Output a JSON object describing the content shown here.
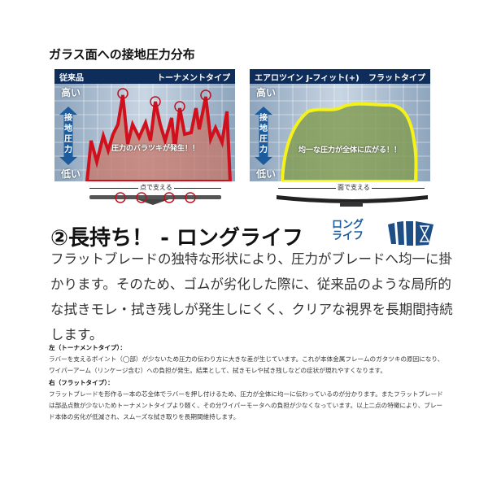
{
  "title": "ガラス面への接地圧力分布",
  "left_panel": {
    "header_left": "従来品",
    "header_right": "トーナメントタイプ",
    "high": "高い",
    "low": "低い",
    "axis": "接地圧力",
    "message": "圧力のバラツキが発生！！",
    "support": "点で支える",
    "line_color": "#d0101c"
  },
  "right_panel": {
    "header_left": "エアロツイン J-フィット(+)",
    "header_right": "フラットタイプ",
    "high": "高い",
    "low": "低い",
    "axis": "接地圧力",
    "message": "均一な圧力が全体に広がる！！",
    "support": "面で支える",
    "line_color": "#f5f21a"
  },
  "heading": "②長持ち！ - ロングライフ",
  "icon": {
    "name": "long-life-hourglass-icon",
    "text1": "ロング",
    "text2": "ライフ",
    "color": "#1d4f86"
  },
  "body": "フラットブレードの独特な形状により、圧力がブレードへ均一に掛かります。そのため、ゴムが劣化した際に、従来品のような局所的な拭きモレ・拭き残しが発生しにくく、クリアな視界を長期間持続します。",
  "notes": {
    "left_title": "左（トーナメントタイプ）：",
    "left_text": " ラバーを支えるポイント（◯部）が少ないため圧力の伝わり方に大きな差が生じています。これが本体金属フレームのガタツキの原因になり、ワイパーアーム（リンケージ含む）への負担が発生。結果として、拭きモレや拭き残しなどの症状が現れやすくなります。",
    "right_title": "右（フラットタイプ）：",
    "right_text": "フラットブレードを形作る一本の芯全体でラバーを押し付けるため、圧力が全体に均一に伝わっているのが分かります。またフラットブレードは部品点数が少ないためトーナメントタイプより軽く、その分ワイパーモータへの負担が少なくなっています。以上二点の特徴により、ブレード本体の劣化が低減され、スムーズな拭き取りを長期間維持します。"
  }
}
